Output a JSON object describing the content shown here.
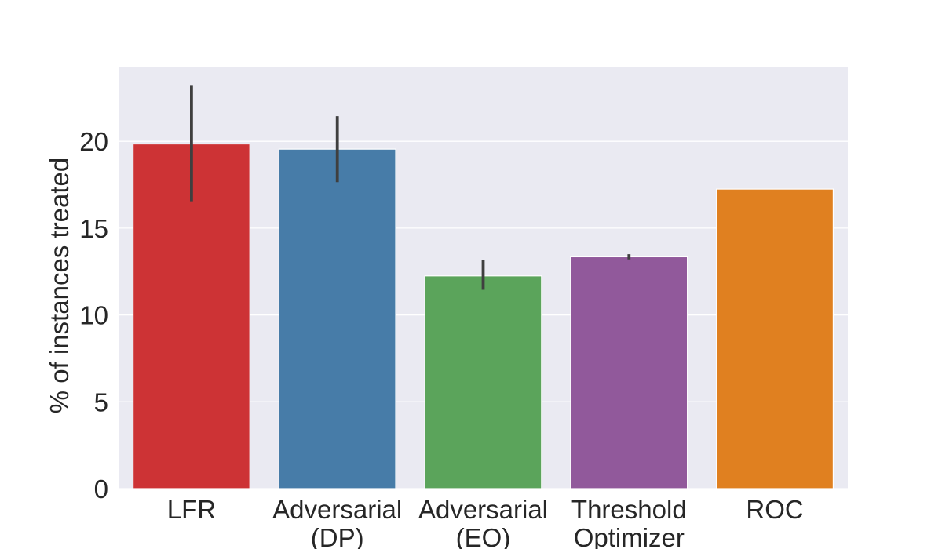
{
  "chart_data": {
    "type": "bar",
    "title": "",
    "xlabel": "",
    "ylabel": "% of instances treated",
    "categories": [
      [
        "LFR"
      ],
      [
        "Adversarial",
        "(DP)"
      ],
      [
        "Adversarial",
        "(EO)"
      ],
      [
        "Threshold",
        "Optimizer"
      ],
      [
        "ROC"
      ]
    ],
    "values": [
      19.85,
      19.55,
      12.25,
      13.35,
      17.25
    ],
    "error_low": [
      16.55,
      17.65,
      11.45,
      13.2,
      null
    ],
    "error_high": [
      23.2,
      21.45,
      13.15,
      13.5,
      null
    ],
    "colors": [
      "#cd3335",
      "#477ca8",
      "#5ba45b",
      "#91599b",
      "#e08020"
    ],
    "ylim": [
      0,
      24.3
    ],
    "yticks": [
      0,
      5,
      10,
      15,
      20
    ],
    "grid": true,
    "background": "#eaeaf2"
  }
}
